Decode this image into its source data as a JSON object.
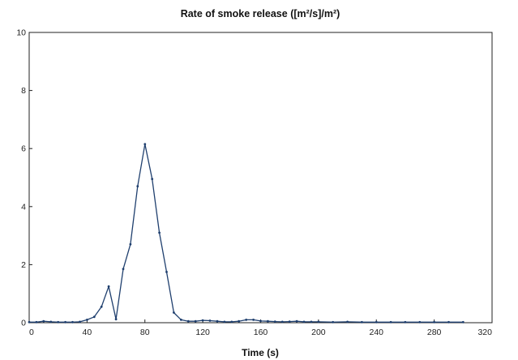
{
  "chart_data": {
    "type": "line",
    "title": "Rate of smoke release ([m²/s]/m²)",
    "xlabel": "Time (s)",
    "ylabel": "",
    "xlim": [
      0,
      320
    ],
    "ylim": [
      0,
      10
    ],
    "x_ticks": [
      0,
      40,
      80,
      120,
      160,
      200,
      240,
      280,
      320
    ],
    "y_ticks": [
      0,
      2,
      4,
      6,
      8,
      10
    ],
    "grid": false,
    "legend": "none",
    "line_color": "#1f3f6e",
    "series": [
      {
        "x": [
          0,
          5,
          10,
          15,
          20,
          25,
          30,
          35,
          40,
          45,
          50,
          55,
          60,
          65,
          70,
          75,
          80,
          85,
          90,
          95,
          100,
          105,
          110,
          115,
          120,
          125,
          130,
          135,
          140,
          145,
          150,
          155,
          160,
          165,
          170,
          175,
          180,
          185,
          190,
          195,
          200,
          210,
          220,
          230,
          240,
          250,
          260,
          270,
          280,
          290,
          300
        ],
        "y": [
          0.02,
          0.02,
          0.05,
          0.03,
          0.02,
          0.02,
          0.02,
          0.03,
          0.1,
          0.2,
          0.55,
          1.25,
          0.12,
          1.85,
          2.7,
          4.7,
          6.15,
          4.95,
          3.1,
          1.75,
          0.35,
          0.1,
          0.05,
          0.05,
          0.08,
          0.07,
          0.05,
          0.03,
          0.03,
          0.05,
          0.1,
          0.1,
          0.06,
          0.05,
          0.04,
          0.03,
          0.04,
          0.05,
          0.03,
          0.03,
          0.03,
          0.02,
          0.03,
          0.02,
          0.02,
          0.02,
          0.02,
          0.02,
          0.02,
          0.02,
          0.02
        ]
      }
    ]
  }
}
